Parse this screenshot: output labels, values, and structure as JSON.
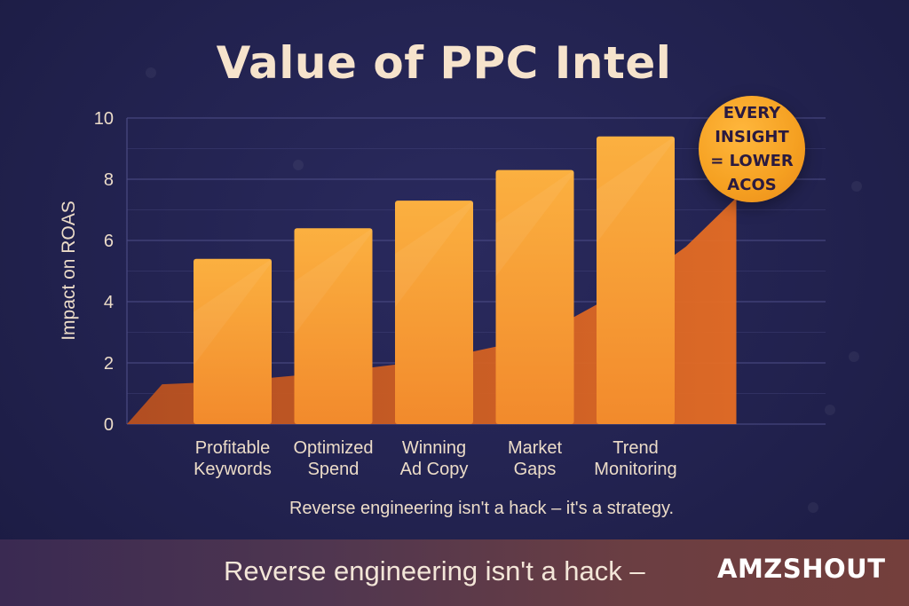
{
  "title": "Value of PPC Intel",
  "badge": {
    "lines": [
      "EVERY",
      "INSIGHT",
      "= LOWER",
      "ACOS"
    ]
  },
  "subtitle": "Reverse engineering isn't a hack – it's a strategy.",
  "footer": {
    "text": "Reverse engineering isn't a hack –",
    "brand": "AMZSHOUT"
  },
  "colors": {
    "bar": "#f7a038",
    "area": "#cf5f22",
    "grid": "#4a4a82",
    "text": "#ecdcc8"
  },
  "chart_data": {
    "type": "bar",
    "title": "Value of PPC Intel",
    "xlabel": "",
    "ylabel": "Impact on ROAS",
    "ylim": [
      0,
      10
    ],
    "yticks": [
      0,
      2,
      4,
      6,
      8,
      10
    ],
    "grid": true,
    "categories": [
      [
        "Profitable",
        "Keywords"
      ],
      [
        "Optimized",
        "Spend"
      ],
      [
        "Winning",
        "Ad Copy"
      ],
      [
        "Market",
        "Gaps"
      ],
      [
        "Trend",
        "Monitoring"
      ]
    ],
    "values": [
      5.4,
      6.4,
      7.3,
      8.3,
      9.4
    ],
    "trend_area": {
      "x": [
        -0.7,
        0,
        1,
        2,
        3,
        4,
        4.5,
        5.0
      ],
      "y": [
        1.3,
        1.4,
        1.7,
        2.1,
        2.8,
        4.6,
        5.8,
        7.4
      ]
    }
  }
}
